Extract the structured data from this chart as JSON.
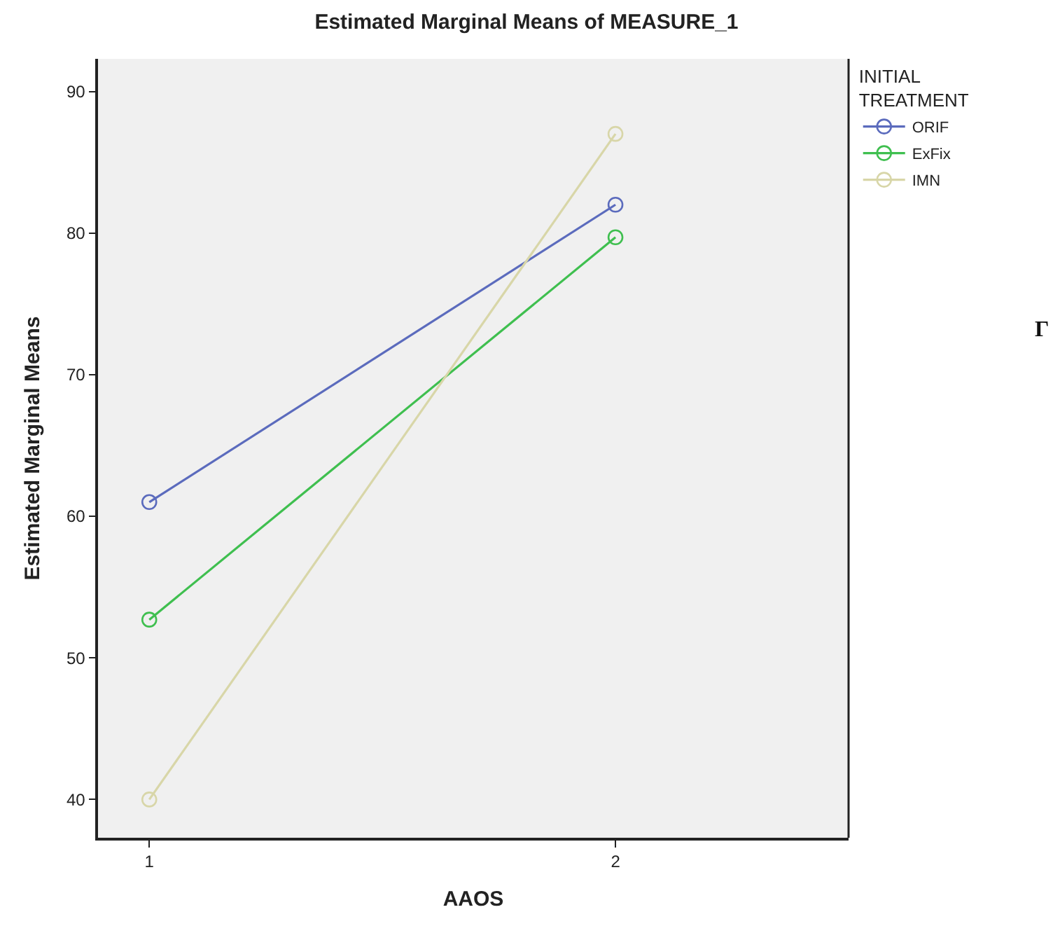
{
  "chart_data": {
    "type": "line",
    "title": "Estimated Marginal Means of MEASURE_1",
    "xlabel": "AAOS",
    "ylabel": "Estimated Marginal Means",
    "legend_title": "INITIAL TREATMENT",
    "categories": [
      "1",
      "2"
    ],
    "series": [
      {
        "name": "ORIF",
        "color": "#5b6bbd",
        "values": [
          61.0,
          82.0
        ]
      },
      {
        "name": "ExFix",
        "color": "#3fbf4f",
        "values": [
          52.7,
          79.7
        ]
      },
      {
        "name": "IMN",
        "color": "#d8d6a8",
        "values": [
          40.0,
          87.0
        ]
      }
    ],
    "ylim": [
      37.3,
      92.3
    ],
    "yticks": [
      40,
      50,
      60,
      70,
      80,
      90
    ],
    "grid": false,
    "legend": "top right",
    "marker": "circle",
    "line_style": "solid",
    "annotations": [
      "Γ"
    ]
  }
}
